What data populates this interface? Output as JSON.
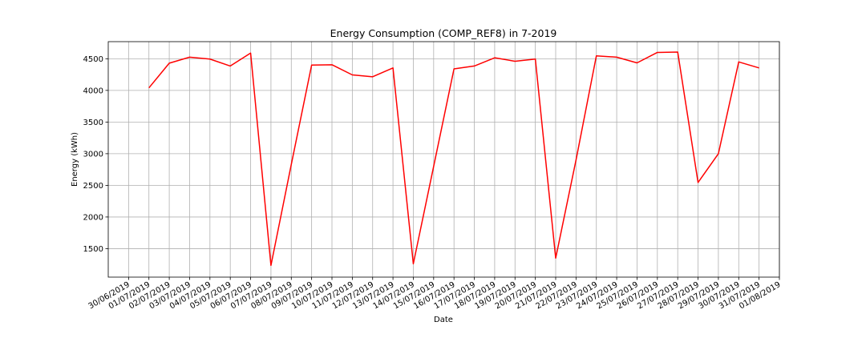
{
  "chart_data": {
    "type": "line",
    "title": "Energy Consumption (COMP_REF8) in 7-2019",
    "xlabel": "Date",
    "ylabel": "Energy (kWh)",
    "grid": true,
    "x_ticks": [
      "30/06/2019",
      "01/07/2019",
      "02/07/2019",
      "03/07/2019",
      "04/07/2019",
      "05/07/2019",
      "06/07/2019",
      "07/07/2019",
      "08/07/2019",
      "09/07/2019",
      "10/07/2019",
      "11/07/2019",
      "12/07/2019",
      "13/07/2019",
      "14/07/2019",
      "15/07/2019",
      "16/07/2019",
      "17/07/2019",
      "18/07/2019",
      "19/07/2019",
      "20/07/2019",
      "21/07/2019",
      "22/07/2019",
      "23/07/2019",
      "24/07/2019",
      "25/07/2019",
      "26/07/2019",
      "27/07/2019",
      "28/07/2019",
      "29/07/2019",
      "30/07/2019",
      "31/07/2019",
      "01/08/2019"
    ],
    "xlim": [
      "29/06/2019",
      "01/08/2019"
    ],
    "y_ticks": [
      1500,
      2000,
      2500,
      3000,
      3500,
      4000,
      4500
    ],
    "ylim": [
      1050,
      4770
    ],
    "series": [
      {
        "color": "#ff0000",
        "x": [
          "01/07/2019",
          "02/07/2019",
          "03/07/2019",
          "04/07/2019",
          "05/07/2019",
          "06/07/2019",
          "07/07/2019",
          "08/07/2019",
          "09/07/2019",
          "10/07/2019",
          "11/07/2019",
          "12/07/2019",
          "13/07/2019",
          "14/07/2019",
          "15/07/2019",
          "16/07/2019",
          "17/07/2019",
          "18/07/2019",
          "19/07/2019",
          "20/07/2019",
          "21/07/2019",
          "22/07/2019",
          "23/07/2019",
          "24/07/2019",
          "25/07/2019",
          "26/07/2019",
          "27/07/2019",
          "28/07/2019",
          "29/07/2019",
          "30/07/2019",
          "31/07/2019"
        ],
        "values": [
          4040,
          4430,
          4525,
          4495,
          4385,
          4590,
          1235,
          2830,
          4400,
          4405,
          4245,
          4215,
          4355,
          1260,
          2800,
          4340,
          4385,
          4515,
          4460,
          4495,
          1350,
          2900,
          4545,
          4525,
          4435,
          4600,
          4605,
          2545,
          3000,
          4450,
          4355
        ]
      }
    ]
  }
}
